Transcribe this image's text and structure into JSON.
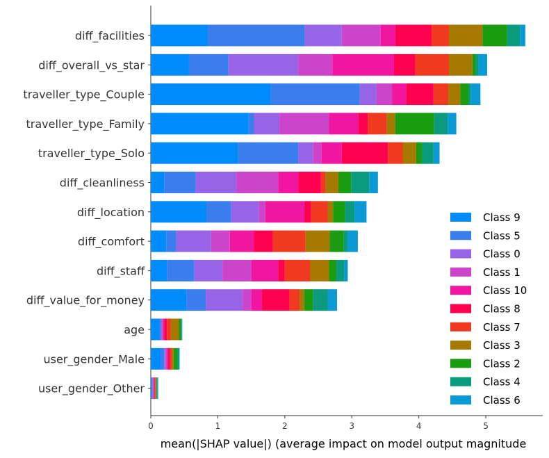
{
  "chart_data": {
    "type": "bar",
    "orientation": "horizontal",
    "stacked": true,
    "title": "",
    "xlabel": "mean(|SHAP value|) (average impact on model output magnitude",
    "ylabel": "",
    "xlim": [
      0,
      5.85
    ],
    "xticks": [
      "0",
      "1",
      "2",
      "3",
      "4",
      "5"
    ],
    "grid": false,
    "legend_position": "lower-right",
    "categories": [
      "diff_facilities",
      "diff_overall_vs_star",
      "traveller_type_Couple",
      "traveller_type_Family",
      "traveller_type_Solo",
      "diff_cleanliness",
      "diff_location",
      "diff_comfort",
      "diff_staff",
      "diff_value_for_money",
      "age",
      "user_gender_Male",
      "user_gender_Other"
    ],
    "series": [
      {
        "name": "Class 9",
        "color": "#008bfb",
        "values": [
          0.85,
          0.57,
          1.79,
          1.46,
          1.3,
          0.2,
          0.83,
          0.23,
          0.24,
          0.53,
          0.13,
          0.15,
          0.01
        ]
      },
      {
        "name": "Class 5",
        "color": "#3a7eed",
        "values": [
          1.45,
          0.59,
          1.33,
          0.08,
          0.9,
          0.47,
          0.37,
          0.15,
          0.41,
          0.29,
          0.02,
          0.05,
          0.01
        ]
      },
      {
        "name": "Class 0",
        "color": "#9764e7",
        "values": [
          0.55,
          1.04,
          0.25,
          0.38,
          0.22,
          0.61,
          0.41,
          0.52,
          0.42,
          0.55,
          0.02,
          0.02,
          0.01
        ]
      },
      {
        "name": "Class 1",
        "color": "#cc44c9",
        "values": [
          0.58,
          0.51,
          0.23,
          0.74,
          0.13,
          0.62,
          0.1,
          0.28,
          0.43,
          0.13,
          0.01,
          0.02,
          0.01
        ]
      },
      {
        "name": "Class 10",
        "color": "#f0169f",
        "values": [
          0.22,
          0.92,
          0.21,
          0.44,
          0.3,
          0.3,
          0.58,
          0.36,
          0.4,
          0.16,
          0.02,
          0.02,
          0.01
        ]
      },
      {
        "name": "Class 8",
        "color": "#ff0051",
        "values": [
          0.54,
          0.32,
          0.41,
          0.14,
          0.69,
          0.34,
          0.1,
          0.28,
          0.1,
          0.41,
          0.04,
          0.02,
          0.01
        ]
      },
      {
        "name": "Class 7",
        "color": "#ef3a1f",
        "values": [
          0.26,
          0.5,
          0.22,
          0.28,
          0.22,
          0.07,
          0.25,
          0.49,
          0.38,
          0.15,
          0.06,
          0.04,
          0.01
        ]
      },
      {
        "name": "Class 3",
        "color": "#a67a00",
        "values": [
          0.5,
          0.35,
          0.18,
          0.13,
          0.2,
          0.19,
          0.08,
          0.36,
          0.28,
          0.07,
          0.12,
          0.02,
          0.01
        ]
      },
      {
        "name": "Class 2",
        "color": "#1a9b10",
        "values": [
          0.37,
          0.05,
          0.12,
          0.58,
          0.09,
          0.19,
          0.18,
          0.21,
          0.11,
          0.13,
          0.03,
          0.06,
          0.01
        ]
      },
      {
        "name": "Class 4",
        "color": "#0a9a7e",
        "values": [
          0.19,
          0.04,
          0.04,
          0.2,
          0.17,
          0.27,
          0.14,
          0.06,
          0.12,
          0.22,
          0.01,
          0.02,
          0.01
        ]
      },
      {
        "name": "Class 6",
        "color": "#0b99d6",
        "values": [
          0.08,
          0.13,
          0.14,
          0.13,
          0.09,
          0.13,
          0.18,
          0.15,
          0.05,
          0.14,
          0.01,
          0.01,
          0.01
        ]
      }
    ]
  }
}
